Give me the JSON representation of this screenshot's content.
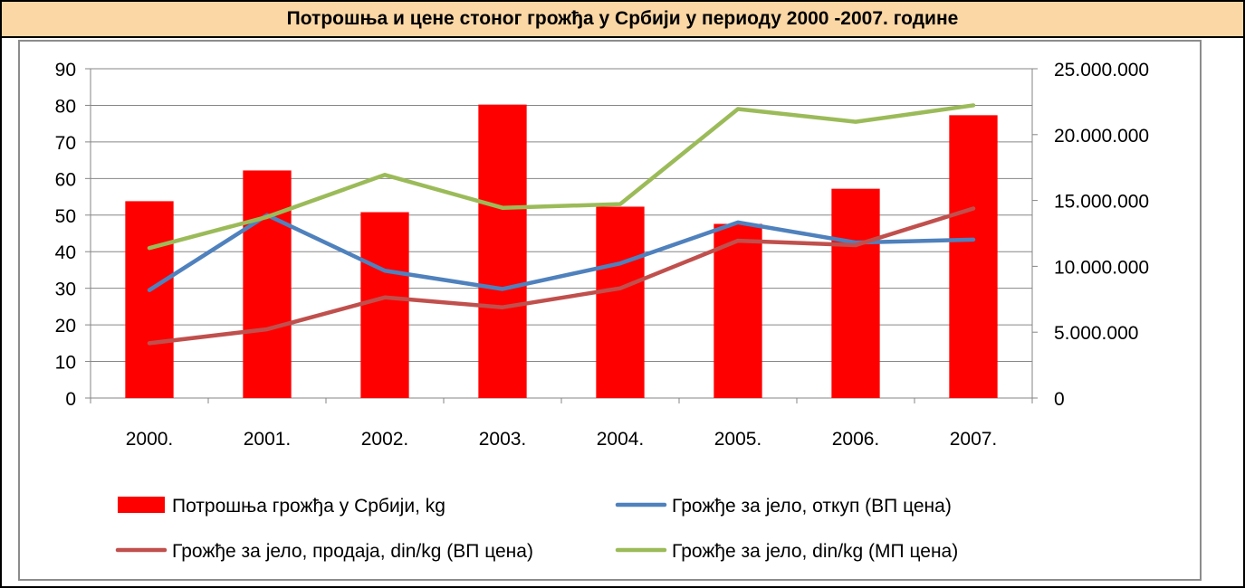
{
  "title": "Потрошња и цене стоног грожђа у Србији у периоду 2000 -2007. године",
  "chart_data": {
    "type": "bar",
    "categories": [
      "2000.",
      "2001.",
      "2002.",
      "2003.",
      "2004.",
      "2005.",
      "2006.",
      "2007."
    ],
    "left_axis": {
      "min": 0,
      "max": 90,
      "step": 10,
      "ticks": [
        "0",
        "10",
        "20",
        "30",
        "40",
        "50",
        "60",
        "70",
        "80",
        "90"
      ]
    },
    "right_axis": {
      "min": 0,
      "max": 25000000,
      "step": 5000000,
      "ticks": [
        "0",
        "5.000.000",
        "10.000.000",
        "15.000.000",
        "20.000.000",
        "25.000.000"
      ]
    },
    "grid": true,
    "legend_position": "bottom",
    "series": [
      {
        "name": "Потрошња грожђа у Србији, kg",
        "type": "bar",
        "axis": "left",
        "color": "#FF0000",
        "values": [
          53.8,
          62.2,
          50.8,
          80.2,
          52.3,
          47.6,
          57.2,
          77.3
        ]
      },
      {
        "name": "Грожђе за јело, откуп (ВП цена)",
        "type": "line",
        "axis": "left",
        "color": "#4F81BD",
        "values": [
          29.5,
          50.0,
          34.8,
          29.8,
          36.8,
          48.0,
          42.5,
          43.3
        ]
      },
      {
        "name": "Грожђе за јело, продаја, din/kg (ВП цена)",
        "type": "line",
        "axis": "left",
        "color": "#C0504D",
        "values": [
          15.0,
          18.8,
          27.5,
          24.8,
          30.0,
          43.0,
          41.8,
          51.8
        ]
      },
      {
        "name": "Грожђе за јело, din/kg (МП цена)",
        "type": "line",
        "axis": "left",
        "color": "#9BBB59",
        "values": [
          41.0,
          49.5,
          61.0,
          52.0,
          53.0,
          79.0,
          75.5,
          80.0
        ]
      }
    ]
  }
}
